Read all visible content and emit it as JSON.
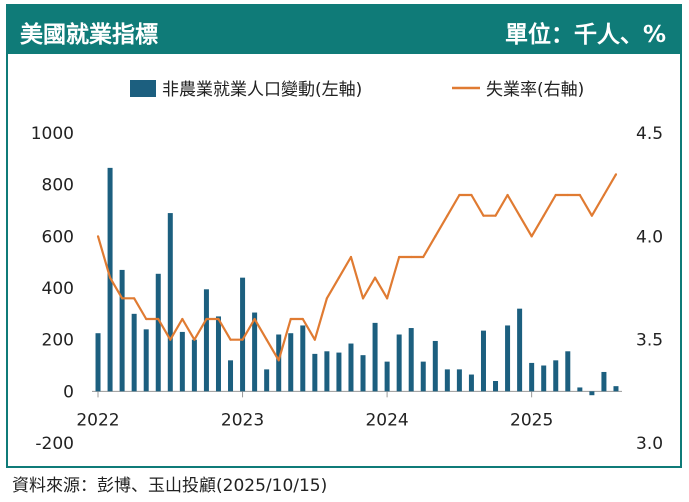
{
  "header": {
    "title": "美國就業指標",
    "unit": "單位：千人、%"
  },
  "source": "資料來源：彭博、玉山投顧(2025/10/15)",
  "colors": {
    "header_bg": "#0f7b78",
    "bar": "#1c5f7f",
    "line": "#e07b32"
  },
  "chart_data": {
    "type": "bar+line",
    "legend_position": "top",
    "grid": true,
    "left_axis": {
      "ylim": [
        -200,
        1000
      ],
      "ticks": [
        -200,
        0,
        200,
        400,
        600,
        800,
        1000
      ]
    },
    "right_axis": {
      "ylim": [
        3.0,
        4.5
      ],
      "ticks": [
        "3.0",
        "3.5",
        "4.0",
        "4.5"
      ]
    },
    "x_ticks": [
      "2022",
      "2023",
      "2024",
      "2025"
    ],
    "x": [
      "2022-01",
      "2022-02",
      "2022-03",
      "2022-04",
      "2022-05",
      "2022-06",
      "2022-07",
      "2022-08",
      "2022-09",
      "2022-10",
      "2022-11",
      "2022-12",
      "2023-01",
      "2023-02",
      "2023-03",
      "2023-04",
      "2023-05",
      "2023-06",
      "2023-07",
      "2023-08",
      "2023-09",
      "2023-10",
      "2023-11",
      "2023-12",
      "2024-01",
      "2024-02",
      "2024-03",
      "2024-04",
      "2024-05",
      "2024-06",
      "2024-07",
      "2024-08",
      "2024-09",
      "2024-10",
      "2024-11",
      "2024-12",
      "2025-01",
      "2025-02",
      "2025-03",
      "2025-04",
      "2025-05",
      "2025-06",
      "2025-07",
      "2025-08"
    ],
    "series": [
      {
        "name": "非農業就業人口變動(左軸)",
        "type": "bar",
        "axis": "left",
        "values": [
          225,
          865,
          470,
          300,
          240,
          455,
          690,
          230,
          200,
          395,
          290,
          120,
          440,
          305,
          85,
          220,
          225,
          255,
          145,
          155,
          150,
          185,
          140,
          265,
          115,
          220,
          245,
          115,
          195,
          85,
          85,
          65,
          235,
          40,
          255,
          320,
          110,
          100,
          120,
          155,
          15,
          -15,
          75,
          20
        ]
      },
      {
        "name": "失業率(右軸)",
        "type": "line",
        "axis": "right",
        "values": [
          4.0,
          3.8,
          3.7,
          3.7,
          3.6,
          3.6,
          3.5,
          3.6,
          3.5,
          3.6,
          3.6,
          3.5,
          3.5,
          3.6,
          3.5,
          3.4,
          3.6,
          3.6,
          3.5,
          3.7,
          3.8,
          3.9,
          3.7,
          3.8,
          3.7,
          3.9,
          3.9,
          3.9,
          4.0,
          4.1,
          4.2,
          4.2,
          4.1,
          4.1,
          4.2,
          4.1,
          4.0,
          4.1,
          4.2,
          4.2,
          4.2,
          4.1,
          4.2,
          4.3
        ]
      }
    ]
  }
}
